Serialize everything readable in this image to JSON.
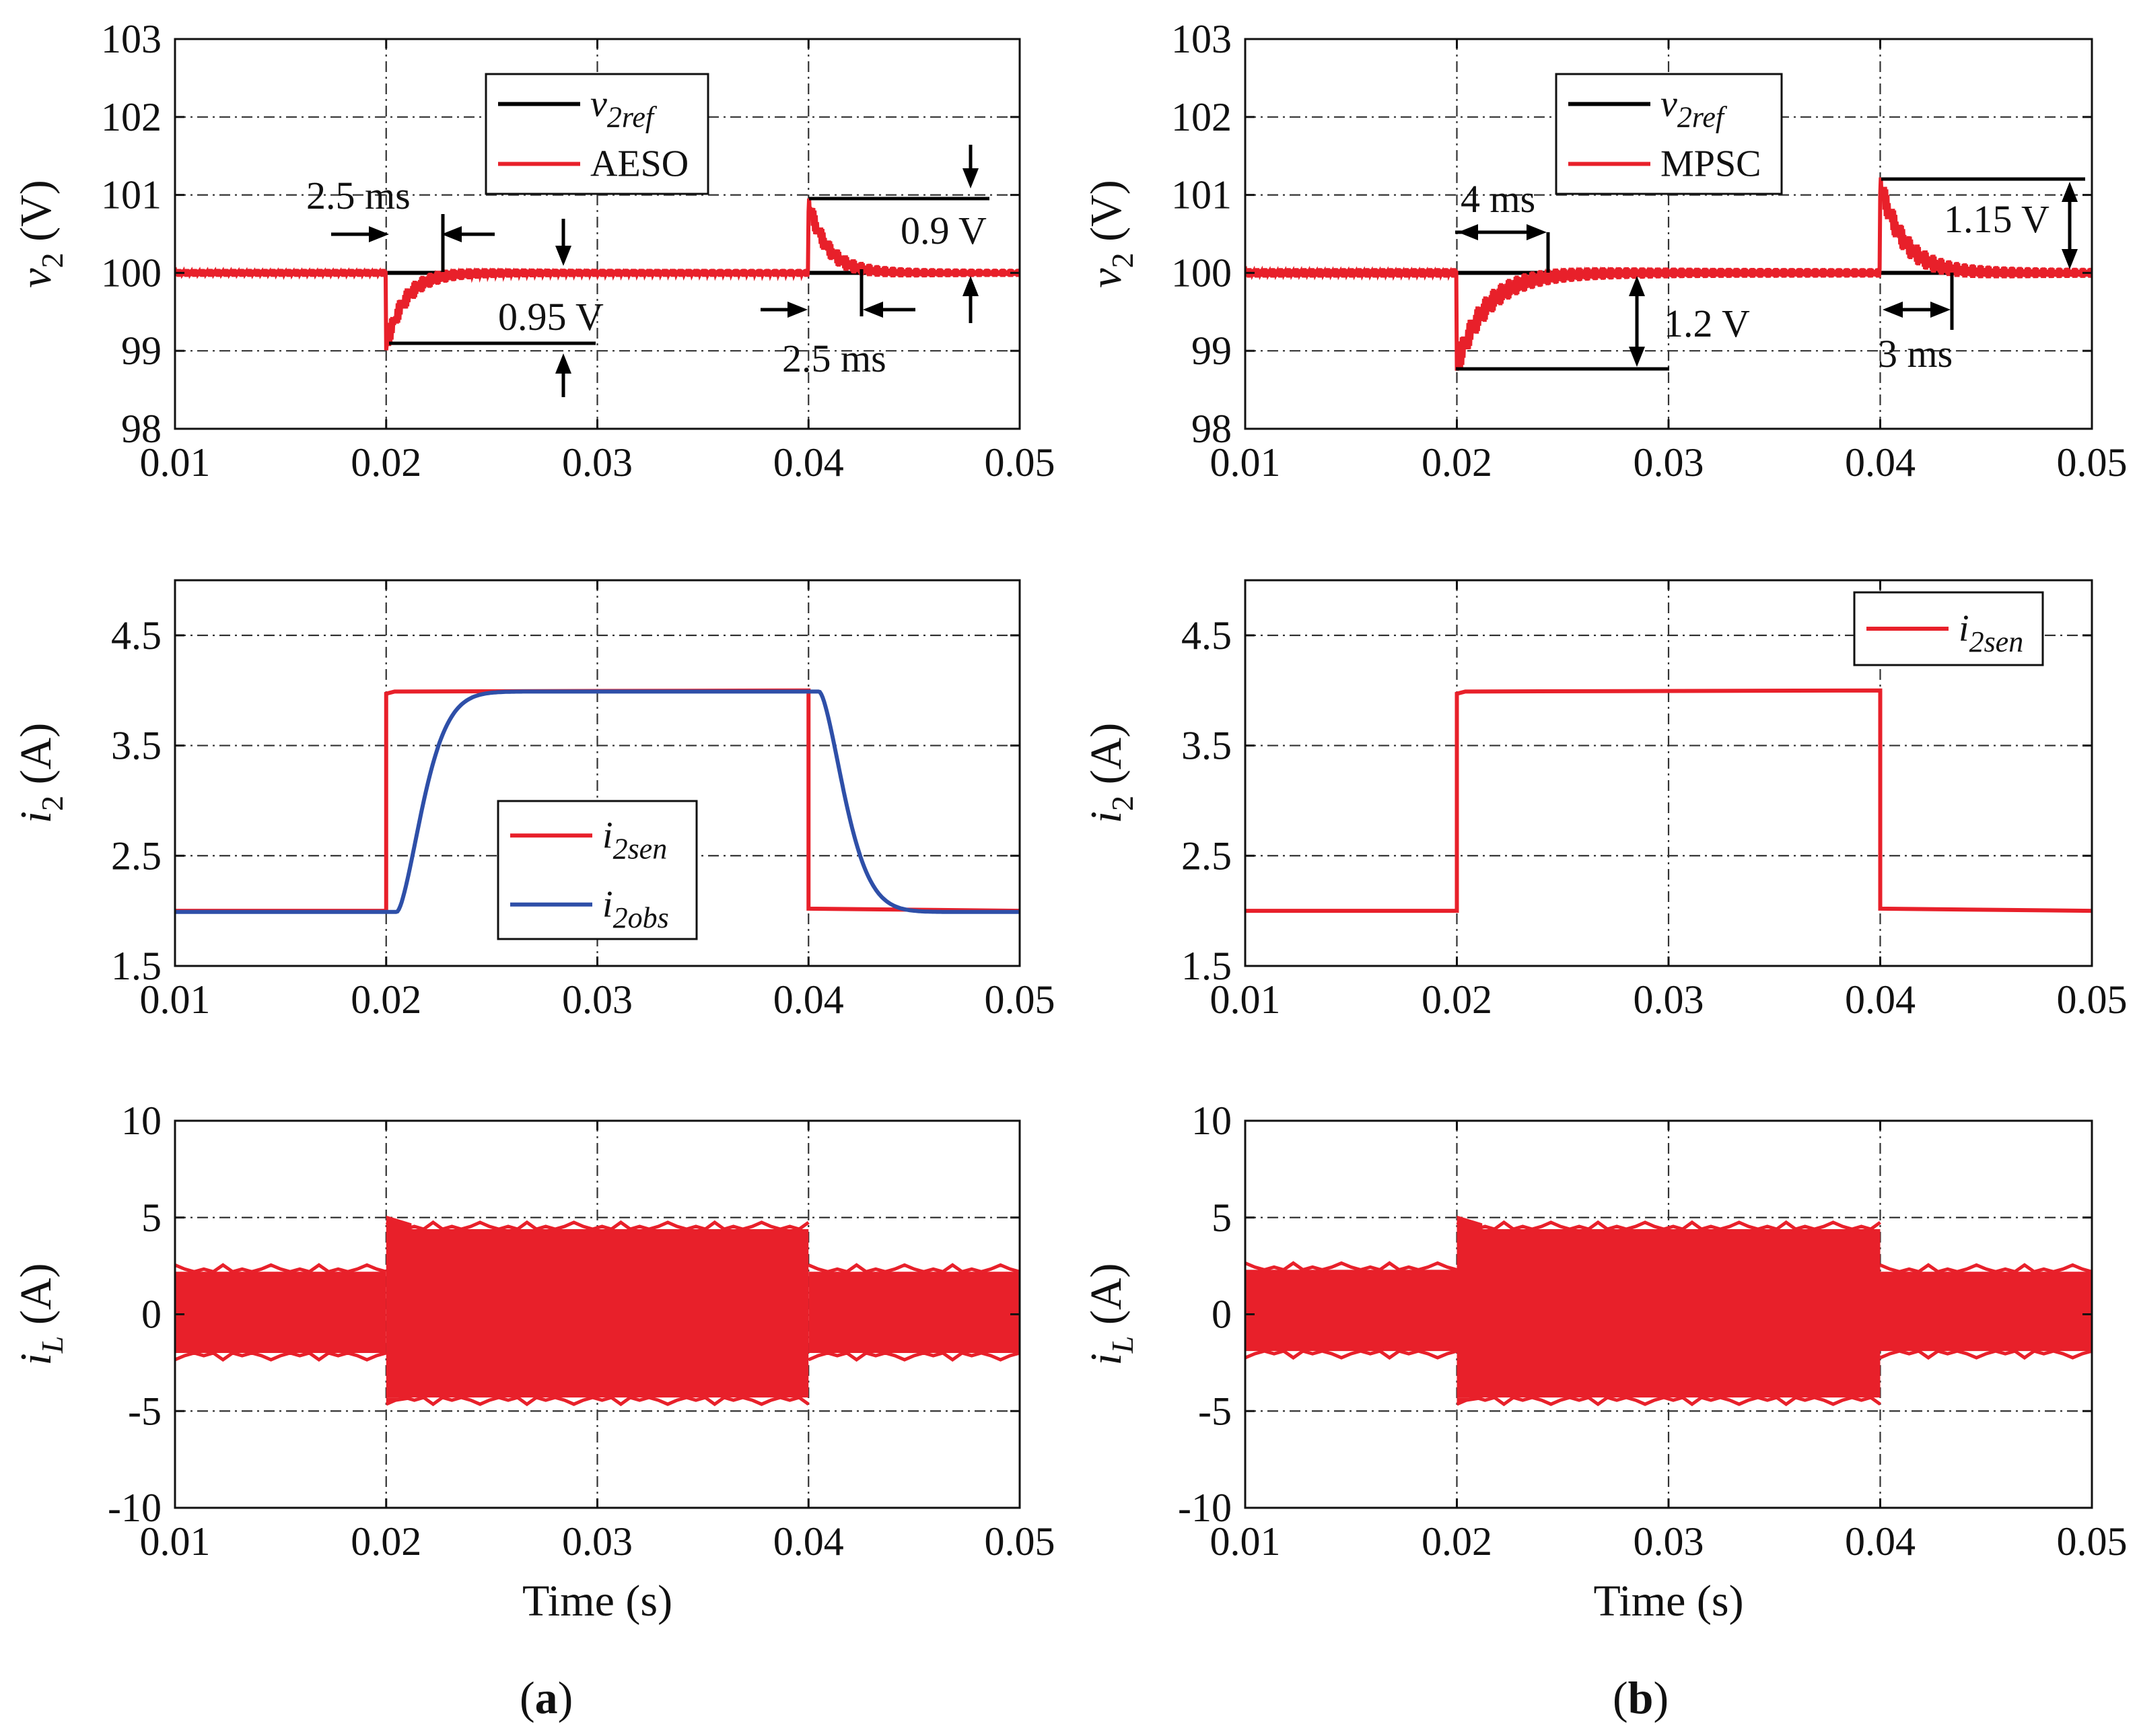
{
  "panels": {
    "a": {
      "label": "(a)",
      "letter": "a"
    },
    "b": {
      "label": "(b)",
      "letter": "b"
    }
  },
  "colors": {
    "red": "#e8202a",
    "blue": "#2e4fa8",
    "black": "#000000"
  },
  "chart_data": [
    {
      "id": "a_v2",
      "type": "line",
      "ylabel_sym": "v",
      "ylabel_sub": "2",
      "ylabel_unit": " (V)",
      "xlim": [
        0.01,
        0.05
      ],
      "ylim": [
        98,
        103
      ],
      "xticks": [
        "0.01",
        "0.02",
        "0.03",
        "0.04",
        "0.05"
      ],
      "yticks": [
        "98",
        "99",
        "100",
        "101",
        "102",
        "103"
      ],
      "grid": true,
      "legend": [
        "v2ref",
        "AESO"
      ],
      "series": [
        {
          "name": "v2ref",
          "color": "#000000",
          "points": [
            [
              0.01,
              100
            ],
            [
              0.05,
              100
            ]
          ]
        },
        {
          "name": "AESO",
          "color": "#e8202a",
          "kind": "v2",
          "base": 100,
          "ripple": 0.05,
          "events": [
            {
              "t": 0.02,
              "dip": -0.95,
              "tau": 0.0009
            },
            {
              "t": 0.04,
              "dip": 0.9,
              "tau": 0.0009
            }
          ]
        }
      ],
      "annotations": [
        "2.5 ms",
        "0.95 V",
        "0.9 V",
        "2.5 ms"
      ]
    },
    {
      "id": "b_v2",
      "type": "line",
      "ylabel_sym": "v",
      "ylabel_sub": "2",
      "ylabel_unit": " (V)",
      "xlim": [
        0.01,
        0.05
      ],
      "ylim": [
        98,
        103
      ],
      "xticks": [
        "0.01",
        "0.02",
        "0.03",
        "0.04",
        "0.05"
      ],
      "yticks": [
        "98",
        "99",
        "100",
        "101",
        "102",
        "103"
      ],
      "grid": true,
      "legend": [
        "v2ref",
        "MPSC"
      ],
      "series": [
        {
          "name": "v2ref",
          "color": "#000000",
          "points": [
            [
              0.01,
              100
            ],
            [
              0.05,
              100
            ]
          ]
        },
        {
          "name": "MPSC",
          "color": "#e8202a",
          "kind": "v2",
          "base": 100,
          "ripple": 0.06,
          "events": [
            {
              "t": 0.02,
              "dip": -1.2,
              "tau": 0.0014
            },
            {
              "t": 0.04,
              "dip": 1.15,
              "tau": 0.0011
            }
          ]
        }
      ],
      "annotations": [
        "4 ms",
        "1.2 V",
        "1.15 V",
        "3 ms"
      ]
    },
    {
      "id": "a_i2",
      "type": "line",
      "ylabel_sym": "i",
      "ylabel_sub": "2",
      "ylabel_unit": " (A)",
      "xlim": [
        0.01,
        0.05
      ],
      "ylim": [
        1.5,
        5.0
      ],
      "xticks": [
        "0.01",
        "0.02",
        "0.03",
        "0.04",
        "0.05"
      ],
      "yticks": [
        "1.5",
        "2.5",
        "3.5",
        "4.5"
      ],
      "grid": true,
      "legend": [
        "i2sen",
        "i2obs"
      ],
      "series": [
        {
          "name": "i2sen",
          "color": "#e8202a",
          "kind": "step",
          "low": 2.0,
          "high": 4.0,
          "t1": 0.02,
          "t2": 0.04
        },
        {
          "name": "i2obs",
          "color": "#2e4fa8",
          "kind": "smooth",
          "low": 2.0,
          "high": 4.0,
          "t1": 0.02,
          "t2": 0.04,
          "tau": 0.0016,
          "delay": 0.0005
        }
      ]
    },
    {
      "id": "b_i2",
      "type": "line",
      "ylabel_sym": "i",
      "ylabel_sub": "2",
      "ylabel_unit": " (A)",
      "xlim": [
        0.01,
        0.05
      ],
      "ylim": [
        1.5,
        5.0
      ],
      "xticks": [
        "0.01",
        "0.02",
        "0.03",
        "0.04",
        "0.05"
      ],
      "yticks": [
        "1.5",
        "2.5",
        "3.5",
        "4.5"
      ],
      "grid": true,
      "legend": [
        "i2sen"
      ],
      "series": [
        {
          "name": "i2sen",
          "color": "#e8202a",
          "kind": "step",
          "low": 2.0,
          "high": 4.0,
          "t1": 0.02,
          "t2": 0.04
        }
      ]
    },
    {
      "id": "a_iL",
      "type": "area",
      "ylabel_sym": "i",
      "ylabel_sub": "L",
      "ylabel_unit": " (A)",
      "xlim": [
        0.01,
        0.05
      ],
      "ylim": [
        -10,
        10
      ],
      "xticks": [
        "0.01",
        "0.02",
        "0.03",
        "0.04",
        "0.05"
      ],
      "yticks": [
        "-10",
        "-5",
        "0",
        "5",
        "10"
      ],
      "xlabel": "Time (s)",
      "grid": true,
      "series": [
        {
          "name": "iL",
          "color": "#e8202a",
          "kind": "band",
          "segments": [
            [
              0.01,
              0.02,
              -2.0,
              2.2
            ],
            [
              0.02,
              0.04,
              -4.3,
              4.4
            ],
            [
              0.04,
              0.05,
              -2.0,
              2.2
            ]
          ]
        }
      ]
    },
    {
      "id": "b_iL",
      "type": "area",
      "ylabel_sym": "i",
      "ylabel_sub": "L",
      "ylabel_unit": " (A)",
      "xlim": [
        0.01,
        0.05
      ],
      "ylim": [
        -10,
        10
      ],
      "xticks": [
        "0.01",
        "0.02",
        "0.03",
        "0.04",
        "0.05"
      ],
      "yticks": [
        "-10",
        "-5",
        "0",
        "5",
        "10"
      ],
      "xlabel": "Time (s)",
      "grid": true,
      "series": [
        {
          "name": "iL",
          "color": "#e8202a",
          "kind": "band",
          "segments": [
            [
              0.01,
              0.02,
              -1.9,
              2.3
            ],
            [
              0.02,
              0.04,
              -4.3,
              4.4
            ],
            [
              0.04,
              0.05,
              -1.9,
              2.2
            ]
          ]
        }
      ]
    }
  ]
}
